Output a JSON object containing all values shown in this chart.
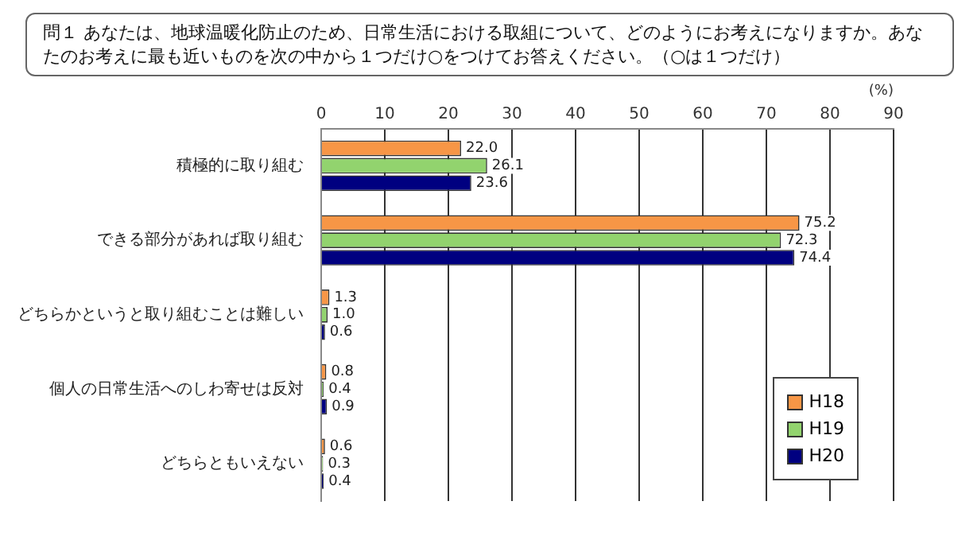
{
  "chart_data": {
    "type": "bar",
    "orientation": "horizontal",
    "title": "問１ あなたは、地球温暖化防止のため、日常生活における取組について、どのようにお考えになりますか。あなたのお考えに最も近いものを次の中から１つだけ○をつけてお答えください。（○は１つだけ）",
    "xlabel": "(%)",
    "categories": [
      "積極的に取り組む",
      "できる部分があれば取り組む",
      "どちらかというと取り組むことは難しい",
      "個人の日常生活へのしわ寄せは反対",
      "どちらともいえない"
    ],
    "series": [
      {
        "name": "H18",
        "color": "#f79646",
        "values": [
          22.0,
          75.2,
          1.3,
          0.8,
          0.6
        ],
        "value_labels": [
          "22.0",
          "75.2",
          "1.3",
          "0.8",
          "0.6"
        ]
      },
      {
        "name": "H19",
        "color": "#92d36e",
        "values": [
          26.1,
          72.3,
          1.0,
          0.4,
          0.3
        ],
        "value_labels": [
          "26.1",
          "72.3",
          "1.0",
          "0.4",
          "0.3"
        ]
      },
      {
        "name": "H20",
        "color": "#000080",
        "values": [
          23.6,
          74.4,
          0.6,
          0.9,
          0.4
        ],
        "value_labels": [
          "23.6",
          "74.4",
          "0.6",
          "0.9",
          "0.4"
        ]
      }
    ],
    "xlim": [
      0,
      90
    ],
    "xticks": [
      0,
      10,
      20,
      30,
      40,
      50,
      60,
      70,
      80,
      90
    ],
    "grid": "x",
    "legend": "bottom right"
  }
}
